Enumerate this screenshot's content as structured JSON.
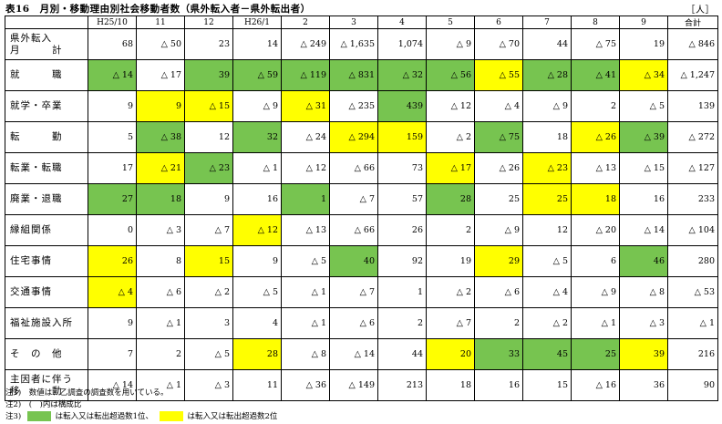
{
  "title": "表16　月別・移動理由別社会移動者数（県外転入者－県外転出者）",
  "unit": "［人］",
  "columns": [
    "",
    "H25/10",
    "11",
    "12",
    "H26/1",
    "2",
    "3",
    "4",
    "5",
    "6",
    "7",
    "8",
    "9",
    "合計"
  ],
  "rows": [
    {
      "label": "県外転入\n月　　　計",
      "cells": [
        {
          "v": "68",
          "c": ""
        },
        {
          "v": "△ 50",
          "c": ""
        },
        {
          "v": "23",
          "c": ""
        },
        {
          "v": "14",
          "c": ""
        },
        {
          "v": "△ 249",
          "c": ""
        },
        {
          "v": "△ 1,635",
          "c": ""
        },
        {
          "v": "1,074",
          "c": ""
        },
        {
          "v": "△ 9",
          "c": ""
        },
        {
          "v": "△ 70",
          "c": ""
        },
        {
          "v": "44",
          "c": ""
        },
        {
          "v": "△ 75",
          "c": ""
        },
        {
          "v": "19",
          "c": ""
        },
        {
          "v": "△ 846",
          "c": ""
        }
      ]
    },
    {
      "label": "就　　　職",
      "cells": [
        {
          "v": "△ 14",
          "c": "green"
        },
        {
          "v": "△ 17",
          "c": ""
        },
        {
          "v": "39",
          "c": "green"
        },
        {
          "v": "△ 59",
          "c": "green"
        },
        {
          "v": "△ 119",
          "c": "green"
        },
        {
          "v": "△ 831",
          "c": "green"
        },
        {
          "v": "△ 32",
          "c": "green"
        },
        {
          "v": "△ 56",
          "c": "green"
        },
        {
          "v": "△ 55",
          "c": "yellow"
        },
        {
          "v": "△ 28",
          "c": "green"
        },
        {
          "v": "△ 41",
          "c": "green"
        },
        {
          "v": "△ 34",
          "c": "yellow"
        },
        {
          "v": "△ 1,247",
          "c": ""
        }
      ]
    },
    {
      "label": "就学・卒業",
      "cells": [
        {
          "v": "9",
          "c": ""
        },
        {
          "v": "9",
          "c": "yellow"
        },
        {
          "v": "△ 15",
          "c": "yellow"
        },
        {
          "v": "△ 9",
          "c": ""
        },
        {
          "v": "△ 31",
          "c": "yellow"
        },
        {
          "v": "△ 235",
          "c": ""
        },
        {
          "v": "439",
          "c": "green"
        },
        {
          "v": "△ 12",
          "c": ""
        },
        {
          "v": "△ 4",
          "c": ""
        },
        {
          "v": "△ 9",
          "c": ""
        },
        {
          "v": "2",
          "c": ""
        },
        {
          "v": "△ 5",
          "c": ""
        },
        {
          "v": "139",
          "c": ""
        }
      ]
    },
    {
      "label": "転　　　勤",
      "cells": [
        {
          "v": "5",
          "c": ""
        },
        {
          "v": "△ 38",
          "c": "green"
        },
        {
          "v": "12",
          "c": ""
        },
        {
          "v": "32",
          "c": "green"
        },
        {
          "v": "△ 24",
          "c": ""
        },
        {
          "v": "△ 294",
          "c": "yellow"
        },
        {
          "v": "159",
          "c": "yellow"
        },
        {
          "v": "△ 2",
          "c": ""
        },
        {
          "v": "△ 75",
          "c": "green"
        },
        {
          "v": "18",
          "c": ""
        },
        {
          "v": "△ 26",
          "c": "yellow"
        },
        {
          "v": "△ 39",
          "c": "green"
        },
        {
          "v": "△ 272",
          "c": ""
        }
      ]
    },
    {
      "label": "転業・転職",
      "cells": [
        {
          "v": "17",
          "c": ""
        },
        {
          "v": "△ 21",
          "c": "yellow"
        },
        {
          "v": "△ 23",
          "c": "green"
        },
        {
          "v": "△ 1",
          "c": ""
        },
        {
          "v": "△ 12",
          "c": ""
        },
        {
          "v": "△ 66",
          "c": ""
        },
        {
          "v": "73",
          "c": ""
        },
        {
          "v": "△ 17",
          "c": "yellow"
        },
        {
          "v": "△ 26",
          "c": ""
        },
        {
          "v": "△ 23",
          "c": "yellow"
        },
        {
          "v": "△ 13",
          "c": ""
        },
        {
          "v": "△ 15",
          "c": ""
        },
        {
          "v": "△ 127",
          "c": ""
        }
      ]
    },
    {
      "label": "廃業・退職",
      "cells": [
        {
          "v": "27",
          "c": "green"
        },
        {
          "v": "18",
          "c": "green"
        },
        {
          "v": "9",
          "c": ""
        },
        {
          "v": "16",
          "c": ""
        },
        {
          "v": "1",
          "c": "green"
        },
        {
          "v": "△ 7",
          "c": ""
        },
        {
          "v": "57",
          "c": ""
        },
        {
          "v": "28",
          "c": "green"
        },
        {
          "v": "25",
          "c": ""
        },
        {
          "v": "25",
          "c": "yellow"
        },
        {
          "v": "18",
          "c": "yellow"
        },
        {
          "v": "16",
          "c": ""
        },
        {
          "v": "233",
          "c": ""
        }
      ]
    },
    {
      "label": "縁組関係",
      "cells": [
        {
          "v": "0",
          "c": ""
        },
        {
          "v": "△ 3",
          "c": ""
        },
        {
          "v": "△ 7",
          "c": ""
        },
        {
          "v": "△ 12",
          "c": "yellow"
        },
        {
          "v": "△ 13",
          "c": ""
        },
        {
          "v": "△ 66",
          "c": ""
        },
        {
          "v": "26",
          "c": ""
        },
        {
          "v": "2",
          "c": ""
        },
        {
          "v": "△ 9",
          "c": ""
        },
        {
          "v": "12",
          "c": ""
        },
        {
          "v": "△ 20",
          "c": ""
        },
        {
          "v": "△ 14",
          "c": ""
        },
        {
          "v": "△ 104",
          "c": ""
        }
      ]
    },
    {
      "label": "住宅事情",
      "cells": [
        {
          "v": "26",
          "c": "yellow"
        },
        {
          "v": "8",
          "c": ""
        },
        {
          "v": "15",
          "c": "yellow"
        },
        {
          "v": "9",
          "c": ""
        },
        {
          "v": "△ 5",
          "c": ""
        },
        {
          "v": "40",
          "c": "green"
        },
        {
          "v": "92",
          "c": ""
        },
        {
          "v": "19",
          "c": ""
        },
        {
          "v": "29",
          "c": "yellow"
        },
        {
          "v": "△ 5",
          "c": ""
        },
        {
          "v": "6",
          "c": ""
        },
        {
          "v": "46",
          "c": "green"
        },
        {
          "v": "280",
          "c": ""
        }
      ]
    },
    {
      "label": "交通事情",
      "cells": [
        {
          "v": "△ 4",
          "c": "yellow"
        },
        {
          "v": "△ 6",
          "c": ""
        },
        {
          "v": "△ 2",
          "c": ""
        },
        {
          "v": "△ 5",
          "c": ""
        },
        {
          "v": "△ 1",
          "c": ""
        },
        {
          "v": "△ 7",
          "c": ""
        },
        {
          "v": "1",
          "c": ""
        },
        {
          "v": "△ 2",
          "c": ""
        },
        {
          "v": "△ 6",
          "c": ""
        },
        {
          "v": "△ 4",
          "c": ""
        },
        {
          "v": "△ 9",
          "c": ""
        },
        {
          "v": "△ 8",
          "c": ""
        },
        {
          "v": "△ 53",
          "c": ""
        }
      ]
    },
    {
      "label": "福祉施設入所",
      "cells": [
        {
          "v": "9",
          "c": ""
        },
        {
          "v": "△ 1",
          "c": ""
        },
        {
          "v": "3",
          "c": ""
        },
        {
          "v": "4",
          "c": ""
        },
        {
          "v": "△ 1",
          "c": ""
        },
        {
          "v": "△ 6",
          "c": ""
        },
        {
          "v": "2",
          "c": ""
        },
        {
          "v": "△ 7",
          "c": ""
        },
        {
          "v": "2",
          "c": ""
        },
        {
          "v": "△ 2",
          "c": ""
        },
        {
          "v": "△ 1",
          "c": ""
        },
        {
          "v": "△ 3",
          "c": ""
        },
        {
          "v": "△ 1",
          "c": ""
        }
      ]
    },
    {
      "label": "そ　の　他",
      "cells": [
        {
          "v": "7",
          "c": ""
        },
        {
          "v": "2",
          "c": ""
        },
        {
          "v": "△ 5",
          "c": ""
        },
        {
          "v": "28",
          "c": "yellow"
        },
        {
          "v": "△ 8",
          "c": ""
        },
        {
          "v": "△ 14",
          "c": ""
        },
        {
          "v": "44",
          "c": ""
        },
        {
          "v": "20",
          "c": "yellow"
        },
        {
          "v": "33",
          "c": "green"
        },
        {
          "v": "45",
          "c": "green"
        },
        {
          "v": "25",
          "c": "green"
        },
        {
          "v": "39",
          "c": "yellow"
        },
        {
          "v": "216",
          "c": ""
        }
      ]
    },
    {
      "label": "主因者に伴う\n移　　　動",
      "cells": [
        {
          "v": "△ 14",
          "c": ""
        },
        {
          "v": "△ 1",
          "c": ""
        },
        {
          "v": "△ 3",
          "c": ""
        },
        {
          "v": "11",
          "c": ""
        },
        {
          "v": "△ 36",
          "c": ""
        },
        {
          "v": "△ 149",
          "c": ""
        },
        {
          "v": "213",
          "c": ""
        },
        {
          "v": "18",
          "c": ""
        },
        {
          "v": "16",
          "c": ""
        },
        {
          "v": "15",
          "c": ""
        },
        {
          "v": "△ 16",
          "c": ""
        },
        {
          "v": "36",
          "c": ""
        },
        {
          "v": "90",
          "c": ""
        }
      ]
    }
  ],
  "notes": {
    "note1": "注1)　数値は、乙調査の調査数を用いている。",
    "note2": "注2)　(　)内は構成比",
    "note3_prefix": "注3)",
    "note3_green_text": "は転入又は転出超過数1位、",
    "note3_yellow_text": "は転入又は転出超過数2位"
  },
  "colors": {
    "green": "#77c450",
    "yellow": "#ffff00"
  }
}
